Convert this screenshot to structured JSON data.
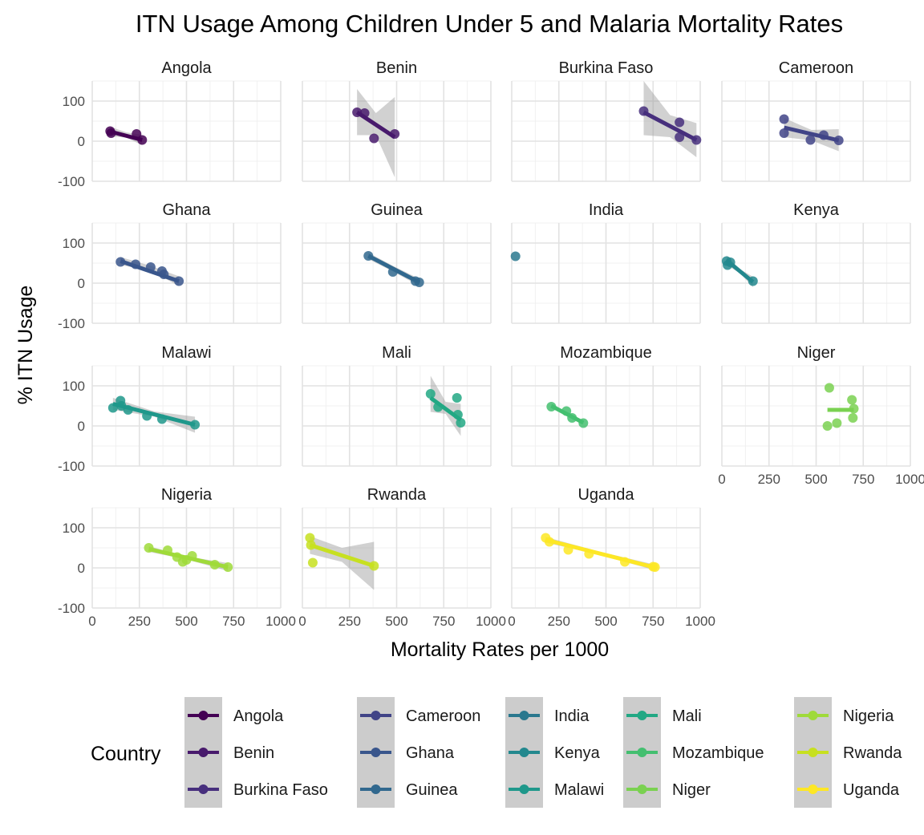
{
  "chart_data": {
    "type": "scatter",
    "title": "ITN Usage Among Children Under 5 and Malaria Mortality Rates",
    "xlabel": "Mortality Rates per 1000",
    "ylabel": "% ITN Usage",
    "xlim": [
      0,
      1000
    ],
    "ylim": [
      -100,
      150
    ],
    "x_ticks": [
      0,
      250,
      500,
      750,
      1000
    ],
    "x_tick_labels": [
      "0",
      "250",
      "500",
      "750",
      "1000"
    ],
    "y_ticks": [
      -100,
      0,
      100
    ],
    "y_tick_labels": [
      "-100",
      "0",
      "100"
    ],
    "grid": true,
    "facet_layout": "4 columns x 4 rows, x axis labels on bottom panel of each column",
    "legend": {
      "title": "Country",
      "placement": "bottom",
      "entries": [
        "Angola",
        "Benin",
        "Burkina Faso",
        "Cameroon",
        "Ghana",
        "Guinea",
        "India",
        "Kenya",
        "Malawi",
        "Mali",
        "Mozambique",
        "Niger",
        "Nigeria",
        "Rwanda",
        "Uganda"
      ]
    },
    "series": [
      {
        "name": "Angola",
        "color": "#440154",
        "x": [
          95,
          100,
          235,
          265
        ],
        "y": [
          25,
          20,
          18,
          3
        ],
        "fit": [
          [
            95,
            24
          ],
          [
            265,
            3
          ]
        ],
        "band": [
          [
            95,
            12,
            36
          ],
          [
            180,
            9,
            22
          ],
          [
            265,
            -10,
            16
          ]
        ]
      },
      {
        "name": "Benin",
        "color": "#481A6C",
        "x": [
          290,
          330,
          380,
          490
        ],
        "y": [
          72,
          70,
          7,
          18
        ],
        "fit": [
          [
            290,
            72
          ],
          [
            490,
            10
          ]
        ],
        "band": [
          [
            290,
            15,
            130
          ],
          [
            390,
            15,
            70
          ],
          [
            490,
            -90,
            110
          ]
        ]
      },
      {
        "name": "Burkina Faso",
        "color": "#472F7D",
        "x": [
          700,
          890,
          890,
          980
        ],
        "y": [
          75,
          47,
          10,
          3
        ],
        "fit": [
          [
            700,
            72
          ],
          [
            980,
            3
          ]
        ],
        "band": [
          [
            700,
            15,
            150
          ],
          [
            840,
            10,
            65
          ],
          [
            980,
            -40,
            45
          ]
        ]
      },
      {
        "name": "Cameroon",
        "color": "#414487",
        "x": [
          330,
          330,
          470,
          540,
          620
        ],
        "y": [
          55,
          20,
          3,
          15,
          2
        ],
        "fit": [
          [
            330,
            34
          ],
          [
            620,
            2
          ]
        ],
        "band": [
          [
            330,
            10,
            58
          ],
          [
            475,
            2,
            28
          ],
          [
            620,
            -25,
            30
          ]
        ]
      },
      {
        "name": "Ghana",
        "color": "#39568C",
        "x": [
          150,
          230,
          310,
          370,
          380,
          460
        ],
        "y": [
          53,
          47,
          40,
          30,
          22,
          5
        ],
        "fit": [
          [
            150,
            55
          ],
          [
            460,
            5
          ]
        ],
        "band": [
          [
            150,
            45,
            65
          ],
          [
            305,
            32,
            44
          ],
          [
            460,
            -7,
            17
          ]
        ]
      },
      {
        "name": "Guinea",
        "color": "#31688E",
        "x": [
          350,
          480,
          600,
          620
        ],
        "y": [
          68,
          28,
          5,
          2
        ],
        "fit": [
          [
            350,
            68
          ],
          [
            620,
            2
          ]
        ],
        "band": [
          [
            350,
            60,
            76
          ],
          [
            485,
            28,
            42
          ],
          [
            620,
            -7,
            11
          ]
        ]
      },
      {
        "name": "India",
        "color": "#2A788E",
        "x": [
          20
        ],
        "y": [
          67
        ],
        "fit": [],
        "band": []
      },
      {
        "name": "Kenya",
        "color": "#23888E",
        "x": [
          25,
          30,
          45,
          165
        ],
        "y": [
          55,
          45,
          52,
          5
        ],
        "fit": [
          [
            25,
            57
          ],
          [
            165,
            3
          ]
        ],
        "band": [
          [
            25,
            45,
            69
          ],
          [
            95,
            25,
            35
          ],
          [
            165,
            -10,
            16
          ]
        ]
      },
      {
        "name": "Malawi",
        "color": "#1F988B",
        "x": [
          110,
          150,
          155,
          190,
          290,
          370,
          545
        ],
        "y": [
          45,
          63,
          50,
          40,
          25,
          17,
          3
        ],
        "fit": [
          [
            110,
            55
          ],
          [
            545,
            3
          ]
        ],
        "band": [
          [
            110,
            40,
            70
          ],
          [
            330,
            23,
            36
          ],
          [
            545,
            -17,
            23
          ]
        ]
      },
      {
        "name": "Mali",
        "color": "#22A884",
        "x": [
          680,
          720,
          820,
          825,
          840
        ],
        "y": [
          80,
          47,
          70,
          28,
          8
        ],
        "fit": [
          [
            680,
            70
          ],
          [
            840,
            15
          ]
        ],
        "band": [
          [
            680,
            35,
            125
          ],
          [
            760,
            30,
            60
          ],
          [
            840,
            -25,
            55
          ]
        ]
      },
      {
        "name": "Mozambique",
        "color": "#44BF70",
        "x": [
          210,
          290,
          320,
          380
        ],
        "y": [
          48,
          37,
          20,
          7
        ],
        "fit": [
          [
            210,
            50
          ],
          [
            380,
            8
          ]
        ],
        "band": [
          [
            210,
            45,
            55
          ],
          [
            295,
            27,
            31
          ],
          [
            380,
            3,
            13
          ]
        ]
      },
      {
        "name": "Niger",
        "color": "#7AD151",
        "x": [
          560,
          570,
          610,
          690,
          695,
          700
        ],
        "y": [
          0,
          95,
          7,
          65,
          20,
          43
        ],
        "fit": [
          [
            560,
            40
          ],
          [
            700,
            40
          ]
        ],
        "band": []
      },
      {
        "name": "Nigeria",
        "color": "#9FDA3A",
        "x": [
          300,
          400,
          450,
          480,
          500,
          530,
          650,
          720
        ],
        "y": [
          50,
          44,
          27,
          15,
          20,
          30,
          8,
          2
        ],
        "fit": [
          [
            300,
            47
          ],
          [
            720,
            2
          ]
        ],
        "band": [
          [
            300,
            40,
            54
          ],
          [
            510,
            20,
            28
          ],
          [
            720,
            -8,
            12
          ]
        ]
      },
      {
        "name": "Rwanda",
        "color": "#C7E020",
        "x": [
          40,
          45,
          55,
          380
        ],
        "y": [
          75,
          57,
          13,
          5
        ],
        "fit": [
          [
            40,
            57
          ],
          [
            380,
            5
          ]
        ],
        "band": [
          [
            40,
            35,
            79
          ],
          [
            210,
            15,
            50
          ],
          [
            380,
            -55,
            65
          ]
        ]
      },
      {
        "name": "Uganda",
        "color": "#FDE725",
        "x": [
          180,
          200,
          300,
          410,
          600,
          750,
          760
        ],
        "y": [
          75,
          65,
          45,
          35,
          15,
          3,
          2
        ],
        "fit": [
          [
            180,
            70
          ],
          [
            760,
            1
          ]
        ],
        "band": [
          [
            180,
            63,
            77
          ],
          [
            470,
            32,
            40
          ],
          [
            760,
            -6,
            8
          ]
        ]
      }
    ]
  }
}
